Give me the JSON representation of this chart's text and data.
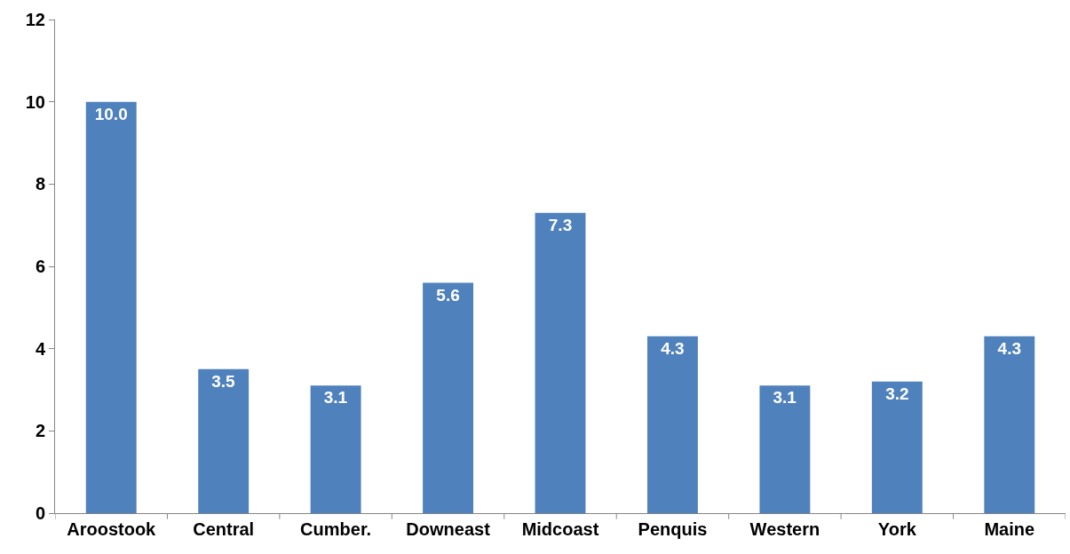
{
  "chart_data": {
    "type": "bar",
    "categories": [
      "Aroostook",
      "Central",
      "Cumber.",
      "Downeast",
      "Midcoast",
      "Penquis",
      "Western",
      "York",
      "Maine"
    ],
    "values": [
      10.0,
      3.5,
      3.1,
      5.6,
      7.3,
      4.3,
      3.1,
      3.2,
      4.3
    ],
    "color": "#4f81bd",
    "ylim": [
      0,
      12
    ],
    "yticks": [
      0,
      2,
      4,
      6,
      8,
      10,
      12
    ],
    "value_labels": [
      "10.0",
      "3.5",
      "3.1",
      "5.6",
      "7.3",
      "4.3",
      "3.1",
      "3.2",
      "4.3"
    ],
    "grid": false,
    "legend": false
  }
}
